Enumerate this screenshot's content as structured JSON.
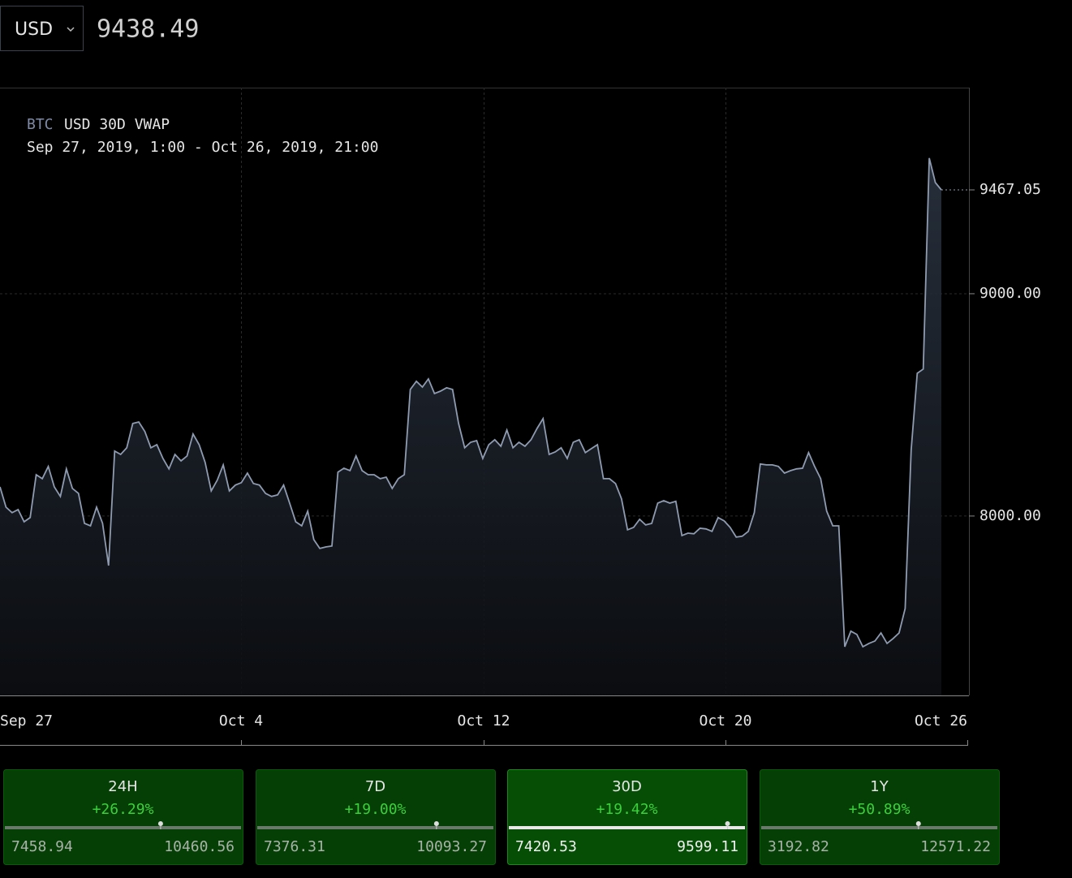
{
  "header": {
    "currency": "USD",
    "price": 9438.49
  },
  "chart_data": {
    "type": "line",
    "title_symbol": "BTC",
    "title": "USD 30D VWAP",
    "subtitle": "Sep 27, 2019, 1:00 - Oct 26, 2019, 21:00",
    "x_labels": [
      "Sep 27",
      "Oct 4",
      "Oct 12",
      "Oct 20",
      "Oct 26"
    ],
    "color": "#8e9bb0",
    "ylim": [
      7193,
      9927
    ],
    "yticks": [
      {
        "value": 8000,
        "label": "8000.00"
      },
      {
        "value": 9000,
        "label": "9000.00"
      }
    ],
    "grid": true,
    "values": [
      8131,
      8040,
      8015,
      8029,
      7974,
      7993,
      8186,
      8168,
      8223,
      8131,
      8088,
      8212,
      8124,
      8102,
      7967,
      7956,
      8040,
      7967,
      7777,
      8292,
      8277,
      8307,
      8416,
      8423,
      8380,
      8307,
      8321,
      8259,
      8212,
      8277,
      8248,
      8270,
      8369,
      8321,
      8241,
      8113,
      8161,
      8230,
      8113,
      8139,
      8150,
      8193,
      8146,
      8139,
      8102,
      8088,
      8095,
      8139,
      8058,
      7974,
      7956,
      8022,
      7894,
      7854,
      7861,
      7865,
      8197,
      8215,
      8204,
      8270,
      8204,
      8186,
      8186,
      8168,
      8175,
      8124,
      8168,
      8186,
      8569,
      8606,
      8580,
      8617,
      8551,
      8562,
      8577,
      8569,
      8416,
      8307,
      8332,
      8339,
      8259,
      8321,
      8343,
      8314,
      8387,
      8307,
      8332,
      8314,
      8343,
      8394,
      8438,
      8277,
      8288,
      8307,
      8259,
      8332,
      8343,
      8285,
      8303,
      8321,
      8168,
      8168,
      8146,
      8077,
      7938,
      7949,
      7985,
      7960,
      7967,
      8058,
      8069,
      8058,
      8066,
      7912,
      7923,
      7920,
      7945,
      7942,
      7931,
      7993,
      7978,
      7949,
      7905,
      7909,
      7931,
      8015,
      8234,
      8230,
      8230,
      8223,
      8193,
      8204,
      8212,
      8215,
      8285,
      8223,
      8168,
      8022,
      7956,
      7956,
      7412,
      7482,
      7467,
      7412,
      7427,
      7438,
      7474,
      7427,
      7449,
      7474,
      7584,
      8296,
      8642,
      8661,
      9610,
      9500,
      9467.05
    ]
  },
  "cards": [
    {
      "period": "24H",
      "change": "+26.29%",
      "low": 7458.94,
      "high": 10460.56
    },
    {
      "period": "7D",
      "change": "+19.00%",
      "low": 7376.31,
      "high": 10093.27
    },
    {
      "period": "30D",
      "change": "+19.42%",
      "low": 7420.53,
      "high": 9599.11
    },
    {
      "period": "1Y",
      "change": "+50.89%",
      "low": 3192.82,
      "high": 12571.22
    }
  ]
}
